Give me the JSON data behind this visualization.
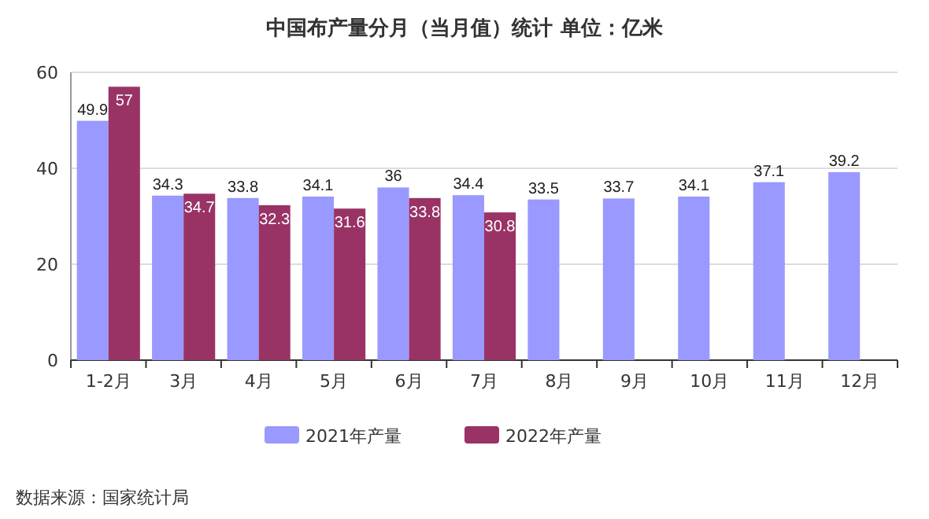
{
  "chart_data": {
    "type": "bar",
    "title": "中国布产量分月（当月值）统计 单位：亿米",
    "categories": [
      "1-2月",
      "3月",
      "4月",
      "5月",
      "6月",
      "7月",
      "8月",
      "9月",
      "10月",
      "11月",
      "12月"
    ],
    "series": [
      {
        "name": "2021年产量",
        "color": "#9999ff",
        "values": [
          49.9,
          34.3,
          33.8,
          34.1,
          36,
          34.4,
          33.5,
          33.7,
          34.1,
          37.1,
          39.2
        ]
      },
      {
        "name": "2022年产量",
        "color": "#993366",
        "values": [
          57,
          34.7,
          32.3,
          31.6,
          33.8,
          30.8,
          null,
          null,
          null,
          null,
          null
        ]
      }
    ],
    "ylim": [
      0,
      60
    ],
    "yticks": [
      0,
      20,
      40,
      60
    ],
    "grid": "y",
    "legend": "bottom",
    "data_labels": true,
    "annotations": [
      "数据来源：国家统计局"
    ]
  }
}
